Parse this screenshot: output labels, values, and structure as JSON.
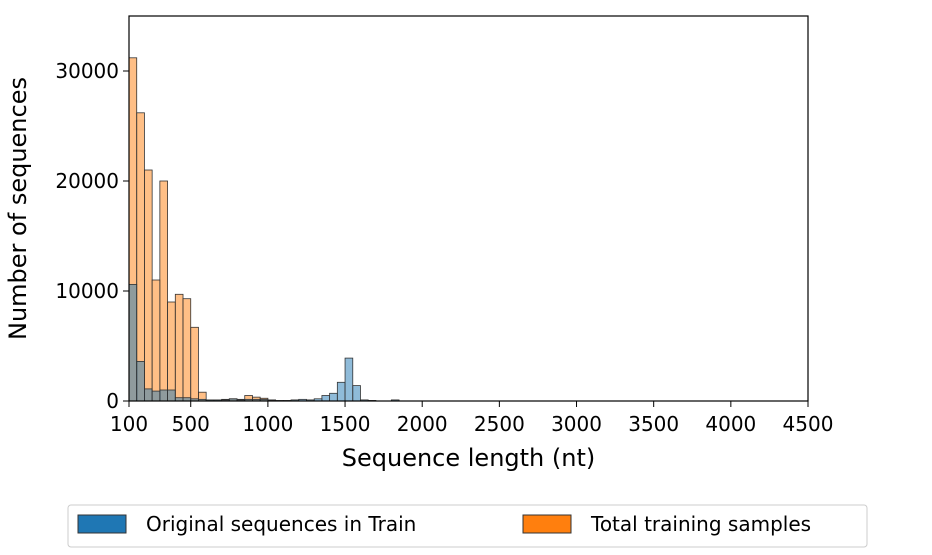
{
  "chart_data": {
    "type": "bar",
    "subtype": "overlaid-histogram",
    "xlabel": "Sequence length (nt)",
    "ylabel": "Number of sequences",
    "xlim": [
      100,
      4500
    ],
    "ylim": [
      0,
      35000
    ],
    "xticks": [
      100,
      500,
      1000,
      1500,
      2000,
      2500,
      3000,
      3500,
      4000,
      4500
    ],
    "yticks": [
      0,
      10000,
      20000,
      30000
    ],
    "grid": false,
    "legend_placement": "bottom-center",
    "bin_width": 50,
    "series": [
      {
        "name": "Total training samples",
        "color": "#ff7f0e",
        "bins": [
          {
            "x0": 100,
            "value": 31200
          },
          {
            "x0": 150,
            "value": 26200
          },
          {
            "x0": 200,
            "value": 21000
          },
          {
            "x0": 250,
            "value": 11000
          },
          {
            "x0": 300,
            "value": 20000
          },
          {
            "x0": 350,
            "value": 9000
          },
          {
            "x0": 400,
            "value": 9700
          },
          {
            "x0": 450,
            "value": 9300
          },
          {
            "x0": 500,
            "value": 6700
          },
          {
            "x0": 550,
            "value": 800
          },
          {
            "x0": 600,
            "value": 100
          },
          {
            "x0": 650,
            "value": 100
          },
          {
            "x0": 700,
            "value": 150
          },
          {
            "x0": 750,
            "value": 200
          },
          {
            "x0": 800,
            "value": 150
          },
          {
            "x0": 850,
            "value": 500
          },
          {
            "x0": 900,
            "value": 350
          },
          {
            "x0": 950,
            "value": 250
          },
          {
            "x0": 1000,
            "value": 100
          },
          {
            "x0": 1050,
            "value": 50
          }
        ]
      },
      {
        "name": "Original sequences in Train",
        "color": "#1f77b4",
        "bins": [
          {
            "x0": 100,
            "value": 10600
          },
          {
            "x0": 150,
            "value": 3600
          },
          {
            "x0": 200,
            "value": 1100
          },
          {
            "x0": 250,
            "value": 900
          },
          {
            "x0": 300,
            "value": 1000
          },
          {
            "x0": 350,
            "value": 1000
          },
          {
            "x0": 400,
            "value": 300
          },
          {
            "x0": 450,
            "value": 300
          },
          {
            "x0": 500,
            "value": 200
          },
          {
            "x0": 550,
            "value": 150
          },
          {
            "x0": 600,
            "value": 100
          },
          {
            "x0": 650,
            "value": 100
          },
          {
            "x0": 700,
            "value": 100
          },
          {
            "x0": 750,
            "value": 200
          },
          {
            "x0": 800,
            "value": 100
          },
          {
            "x0": 850,
            "value": 150
          },
          {
            "x0": 900,
            "value": 150
          },
          {
            "x0": 950,
            "value": 150
          },
          {
            "x0": 1000,
            "value": 50
          },
          {
            "x0": 1100,
            "value": 50
          },
          {
            "x0": 1150,
            "value": 100
          },
          {
            "x0": 1200,
            "value": 150
          },
          {
            "x0": 1250,
            "value": 100
          },
          {
            "x0": 1300,
            "value": 200
          },
          {
            "x0": 1350,
            "value": 500
          },
          {
            "x0": 1400,
            "value": 700
          },
          {
            "x0": 1450,
            "value": 1700
          },
          {
            "x0": 1500,
            "value": 3900
          },
          {
            "x0": 1550,
            "value": 1400
          },
          {
            "x0": 1600,
            "value": 100
          },
          {
            "x0": 1650,
            "value": 50
          },
          {
            "x0": 1800,
            "value": 100
          }
        ]
      }
    ],
    "legend": [
      {
        "label": "Original sequences in Train",
        "color": "#1f77b4"
      },
      {
        "label": "Total training samples",
        "color": "#ff7f0e"
      }
    ]
  }
}
